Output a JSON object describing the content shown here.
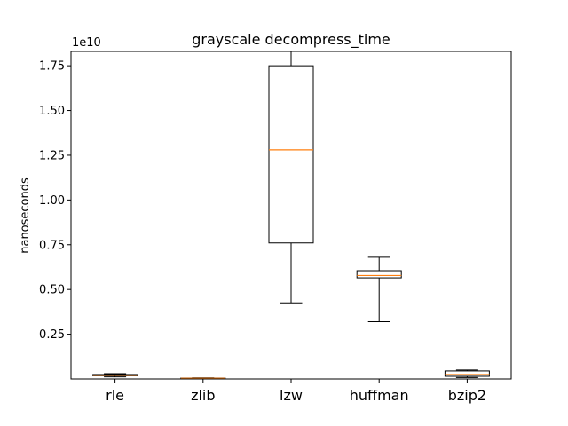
{
  "chart_data": {
    "type": "box",
    "title": "grayscale decompress_time",
    "xlabel": "",
    "ylabel": "nanoseconds",
    "y_offset_label": "1e10",
    "y_scale": 10000000000,
    "ylim": [
      0.0,
      1.83
    ],
    "yticks": [
      0.25,
      0.5,
      0.75,
      1.0,
      1.25,
      1.5,
      1.75
    ],
    "ytick_labels": [
      "0.25",
      "0.50",
      "0.75",
      "1.00",
      "1.25",
      "1.50",
      "1.75"
    ],
    "grid": false,
    "colors": {
      "box": "#000000",
      "median": "#ff7f0e"
    },
    "categories": [
      "rle",
      "zlib",
      "lzw",
      "huffman",
      "bzip2"
    ],
    "boxes": [
      {
        "name": "rle",
        "whisker_low": 0.012,
        "q1": 0.018,
        "median": 0.021,
        "q3": 0.025,
        "whisker_high": 0.03
      },
      {
        "name": "zlib",
        "whisker_low": 0.002,
        "q1": 0.003,
        "median": 0.004,
        "q3": 0.005,
        "whisker_high": 0.006
      },
      {
        "name": "lzw",
        "whisker_low": 0.425,
        "q1": 0.76,
        "median": 1.28,
        "q3": 1.75,
        "whisker_high": 1.83
      },
      {
        "name": "huffman",
        "whisker_low": 0.32,
        "q1": 0.565,
        "median": 0.578,
        "q3": 0.605,
        "whisker_high": 0.68
      },
      {
        "name": "bzip2",
        "whisker_low": 0.008,
        "q1": 0.015,
        "median": 0.025,
        "q3": 0.045,
        "whisker_high": 0.05
      }
    ]
  }
}
